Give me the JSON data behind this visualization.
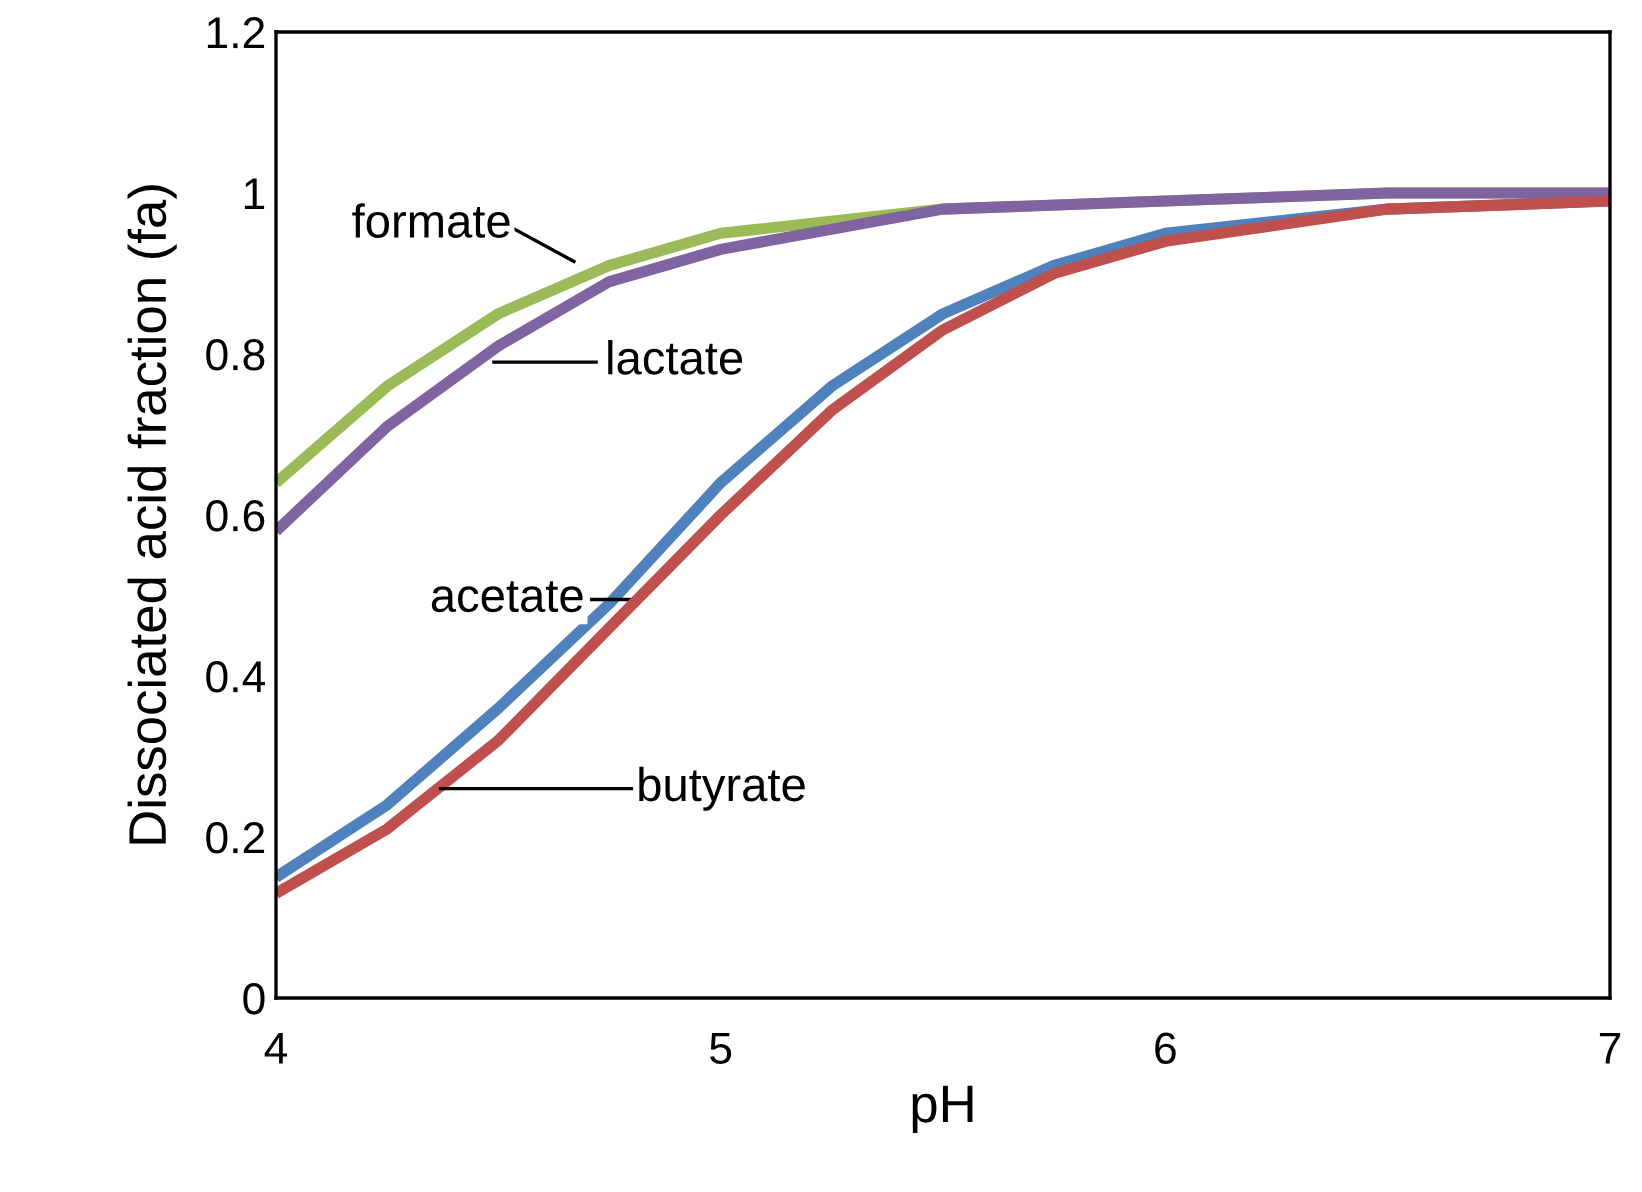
{
  "chart_data": {
    "type": "line",
    "xlabel": "pH",
    "ylabel": "Dissociated acid fraction (fa)",
    "xlim": [
      4,
      7
    ],
    "ylim": [
      0,
      1.2
    ],
    "xticks": [
      4,
      5,
      6,
      7
    ],
    "yticks": [
      0,
      0.2,
      0.4,
      0.6,
      0.8,
      1,
      1.2
    ],
    "grid": false,
    "legend": false,
    "marker": "none",
    "line_style": "solid",
    "series": [
      {
        "name": "formate",
        "color": "#9bbb59",
        "x": [
          4,
          4.25,
          4.5,
          4.75,
          5,
          5.5,
          6,
          6.5,
          7
        ],
        "values": [
          0.64,
          0.76,
          0.85,
          0.91,
          0.95,
          0.98,
          0.99,
          1.0,
          1.0
        ]
      },
      {
        "name": "lactate",
        "color": "#8064a2",
        "x": [
          4,
          4.25,
          4.5,
          4.75,
          5,
          5.5,
          6,
          6.5,
          7
        ],
        "values": [
          0.58,
          0.71,
          0.81,
          0.89,
          0.93,
          0.98,
          0.99,
          1.0,
          1.0
        ]
      },
      {
        "name": "acetate",
        "color": "#4f81bd",
        "x": [
          4,
          4.25,
          4.5,
          4.75,
          5,
          5.25,
          5.5,
          5.75,
          6,
          6.5,
          7
        ],
        "values": [
          0.15,
          0.24,
          0.36,
          0.49,
          0.64,
          0.76,
          0.85,
          0.91,
          0.95,
          0.98,
          0.99
        ]
      },
      {
        "name": "butyrate",
        "color": "#c0504d",
        "x": [
          4,
          4.25,
          4.5,
          4.75,
          5,
          5.25,
          5.5,
          5.75,
          6,
          6.5,
          7
        ],
        "values": [
          0.13,
          0.21,
          0.32,
          0.46,
          0.6,
          0.73,
          0.83,
          0.9,
          0.94,
          0.98,
          0.99
        ]
      }
    ]
  }
}
